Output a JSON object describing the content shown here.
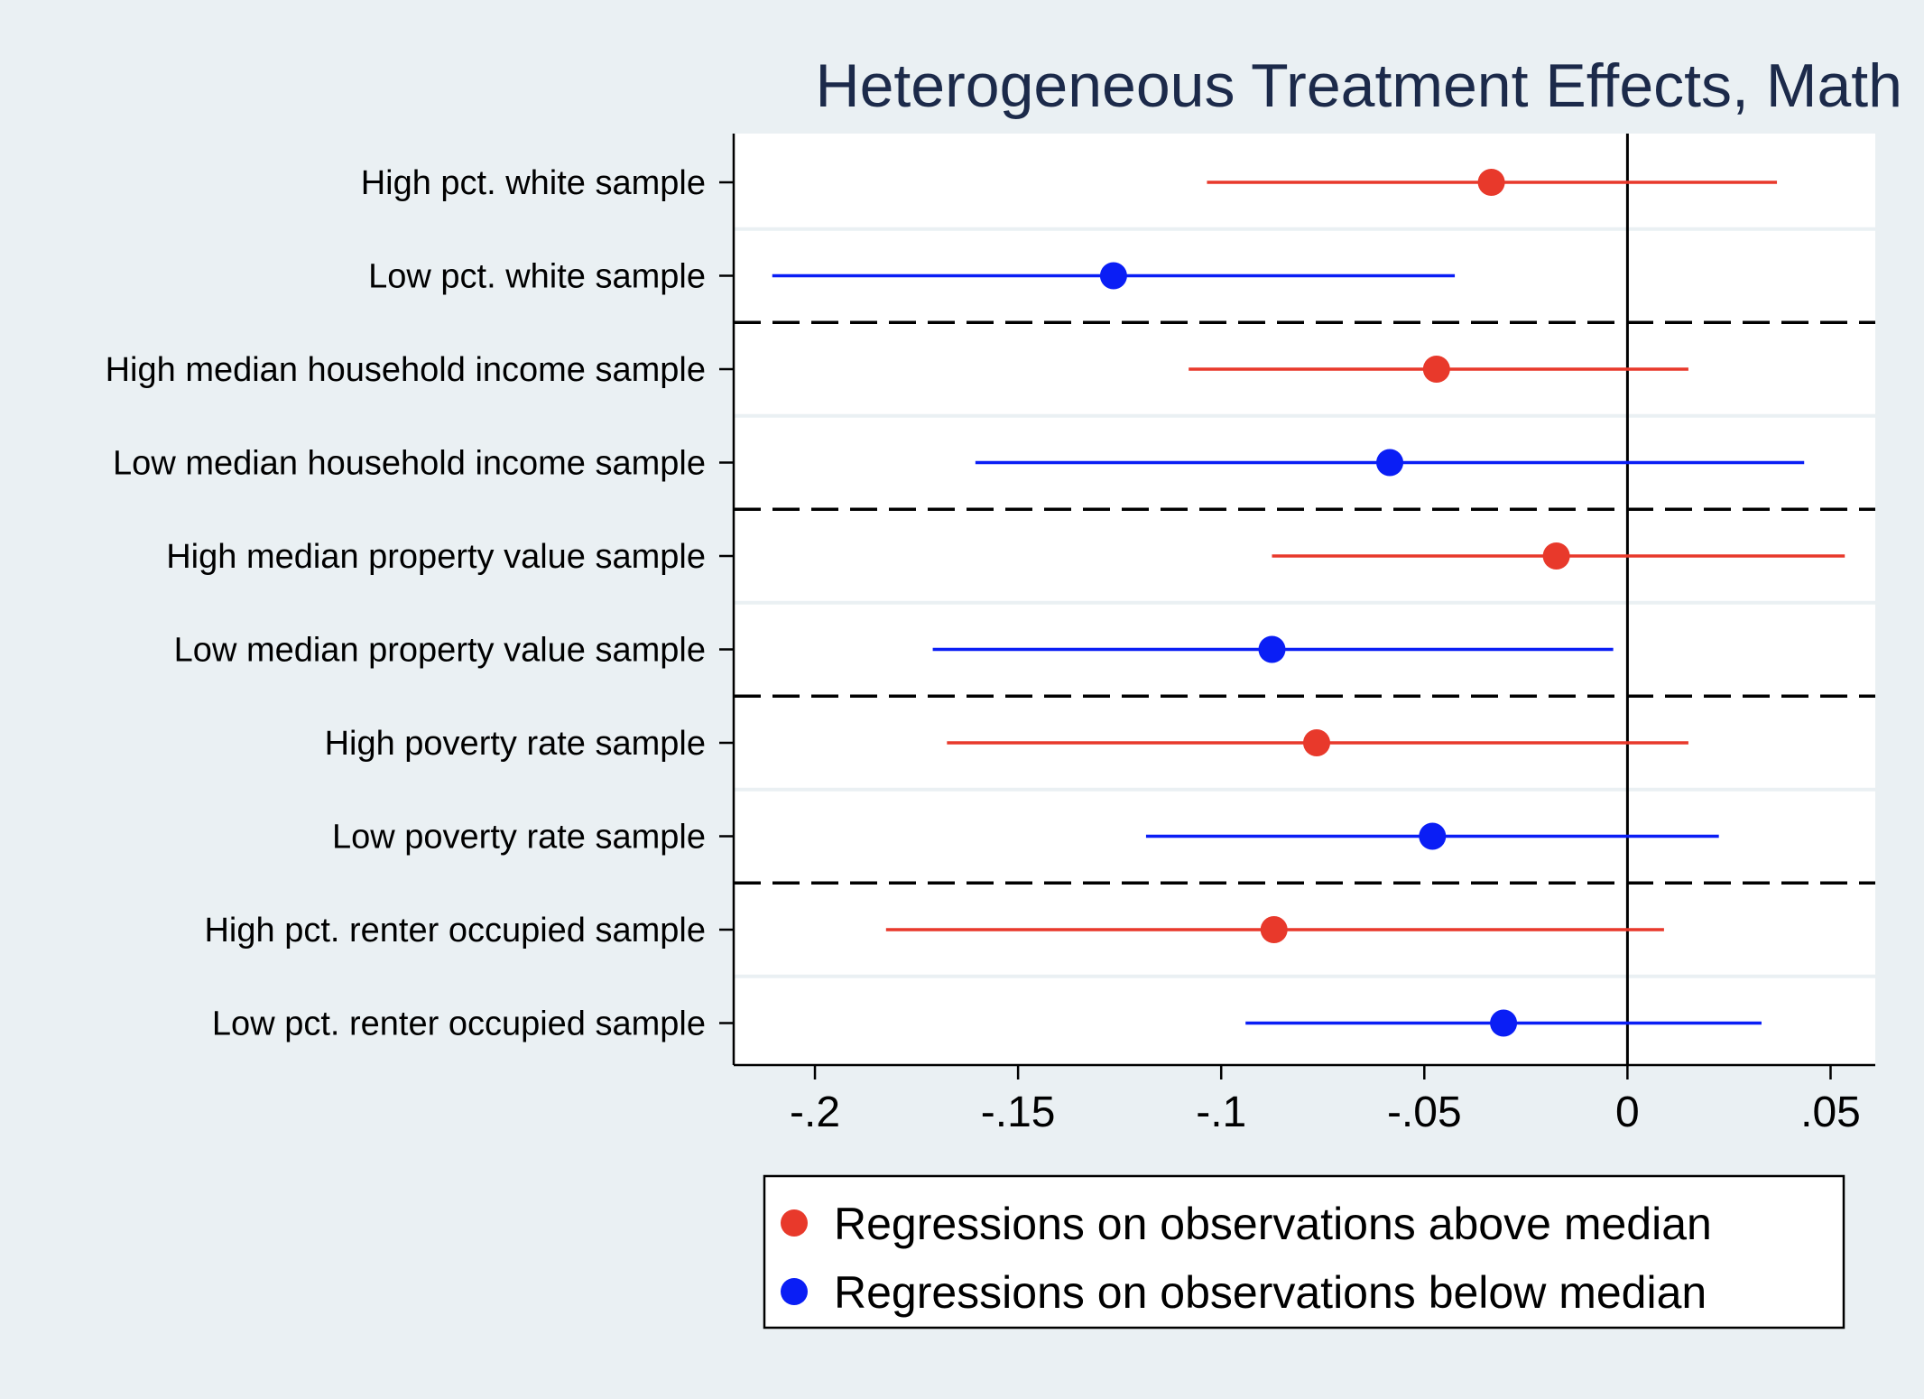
{
  "chart_data": {
    "type": "scatter",
    "title": "Heterogeneous Treatment Effects, Math",
    "xlabel": "",
    "ylabel": "",
    "xlim": [
      -0.22,
      0.061
    ],
    "x_ticks": [
      -0.2,
      -0.15,
      -0.1,
      -0.05,
      0,
      0.05
    ],
    "x_tick_labels": [
      "-.2",
      "-.15",
      "-.1",
      "-.05",
      "0",
      ".05"
    ],
    "reference_line_x": 0,
    "legend_position": "bottom",
    "colors": {
      "above": "#e8392b",
      "below": "#0a1ef5",
      "background": "#eaf0f3",
      "plot_bg": "#ffffff"
    },
    "rows": [
      {
        "label": "High pct. white sample",
        "series": "above",
        "estimate": -0.0335,
        "ci_low": -0.1035,
        "ci_high": 0.0368
      },
      {
        "label": "Low pct. white sample",
        "series": "below",
        "estimate": -0.1265,
        "ci_low": -0.2105,
        "ci_high": -0.0425
      },
      {
        "label": "High median household income sample",
        "series": "above",
        "estimate": -0.047,
        "ci_low": -0.108,
        "ci_high": 0.015
      },
      {
        "label": "Low median household income sample",
        "series": "below",
        "estimate": -0.0585,
        "ci_low": -0.1605,
        "ci_high": 0.0435
      },
      {
        "label": "High median property value sample",
        "series": "above",
        "estimate": -0.0175,
        "ci_low": -0.0875,
        "ci_high": 0.0535
      },
      {
        "label": "Low median property value sample",
        "series": "below",
        "estimate": -0.0875,
        "ci_low": -0.171,
        "ci_high": -0.0035
      },
      {
        "label": "High poverty rate sample",
        "series": "above",
        "estimate": -0.0765,
        "ci_low": -0.1675,
        "ci_high": 0.015
      },
      {
        "label": "Low poverty rate sample",
        "series": "below",
        "estimate": -0.048,
        "ci_low": -0.1185,
        "ci_high": 0.0225
      },
      {
        "label": "High pct. renter occupied sample",
        "series": "above",
        "estimate": -0.087,
        "ci_low": -0.1825,
        "ci_high": 0.009
      },
      {
        "label": "Low pct. renter occupied sample",
        "series": "below",
        "estimate": -0.0305,
        "ci_low": -0.094,
        "ci_high": 0.033
      }
    ],
    "group_separators_after_rows": [
      1,
      3,
      5,
      7
    ],
    "legend": [
      {
        "series": "above",
        "label": "Regressions on observations above median"
      },
      {
        "series": "below",
        "label": "Regressions on observations below median"
      }
    ]
  }
}
